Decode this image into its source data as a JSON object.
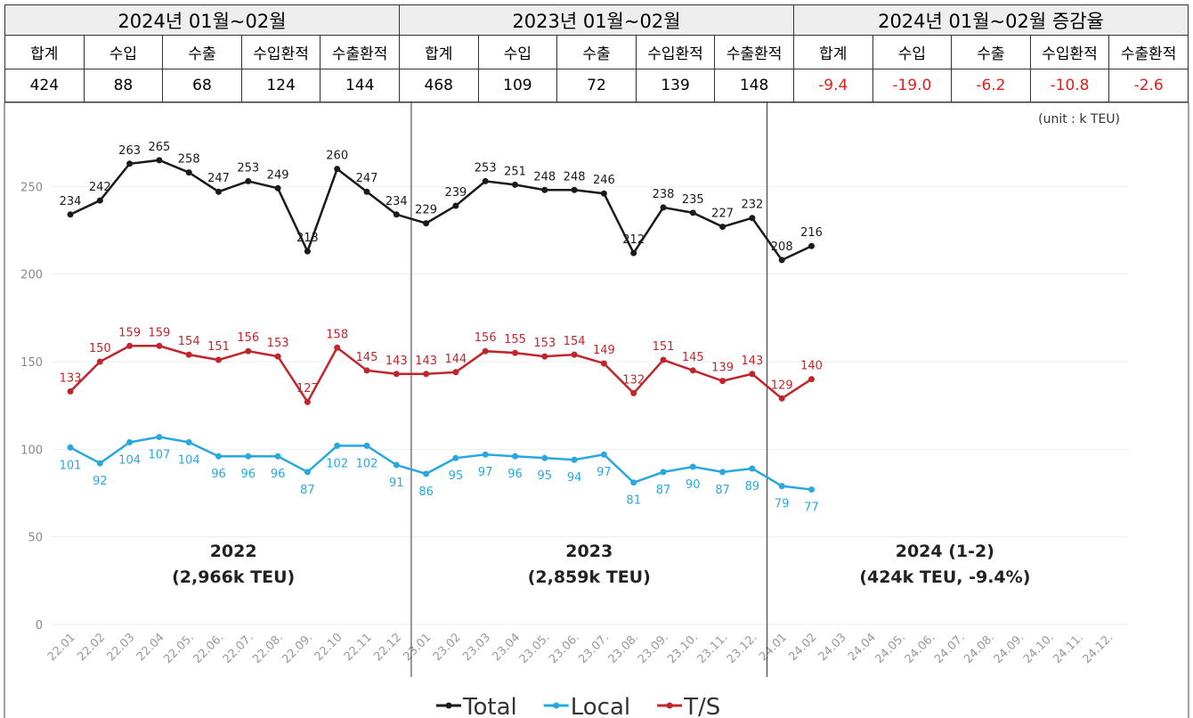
{
  "table": {
    "groups": [
      "2024년 01월~02월",
      "2023년 01월~02월",
      "2024년 01월~02월 증감율"
    ],
    "headers": [
      "합계",
      "수입",
      "수출",
      "수입환적",
      "수출환적",
      "합계",
      "수입",
      "수출",
      "수입환적",
      "수출환적",
      "합계",
      "수입",
      "수출",
      "수입환적",
      "수출환적"
    ],
    "values": [
      "424",
      "88",
      "68",
      "124",
      "144",
      "468",
      "109",
      "72",
      "139",
      "148",
      "-9.4",
      "-19.0",
      "-6.2",
      "-10.8",
      "-2.6"
    ]
  },
  "chart_data": {
    "type": "line",
    "unit_note": "(unit : k TEU)",
    "categories": [
      "22.01",
      "22.02",
      "22.03",
      "22.04",
      "22.05.",
      "22.06.",
      "22.07.",
      "22.08.",
      "22.09.",
      "22.10",
      "22.11",
      "22.12",
      "23.01",
      "23.02",
      "23.03",
      "23.04",
      "23.05.",
      "23.06.",
      "23.07.",
      "23.08.",
      "23.09.",
      "23.10.",
      "23.11.",
      "23.12.",
      "24.01",
      "24.02",
      "24.03",
      "24.04",
      "24.05.",
      "24.06.",
      "24.07.",
      "24.08.",
      "24.09.",
      "24.10.",
      "24.11.",
      "24.12."
    ],
    "series": [
      {
        "name": "Total",
        "color": "#1a1a1a",
        "values": [
          234,
          242,
          263,
          265,
          258,
          247,
          253,
          249,
          213,
          260,
          247,
          234,
          229,
          239,
          253,
          251,
          248,
          248,
          246,
          212,
          238,
          235,
          227,
          232,
          208,
          216,
          null,
          null,
          null,
          null,
          null,
          null,
          null,
          null,
          null,
          null
        ]
      },
      {
        "name": "Local",
        "color": "#29a8e0",
        "values": [
          101,
          92,
          104,
          107,
          104,
          96,
          96,
          96,
          87,
          102,
          102,
          91,
          86,
          95,
          97,
          96,
          95,
          94,
          97,
          81,
          87,
          90,
          87,
          89,
          79,
          77,
          null,
          null,
          null,
          null,
          null,
          null,
          null,
          null,
          null,
          null
        ]
      },
      {
        "name": "T/S",
        "color": "#c0262c",
        "values": [
          133,
          150,
          159,
          159,
          154,
          151,
          156,
          153,
          127,
          158,
          145,
          143,
          143,
          144,
          156,
          155,
          153,
          154,
          149,
          132,
          151,
          145,
          139,
          143,
          129,
          140,
          null,
          null,
          null,
          null,
          null,
          null,
          null,
          null,
          null,
          null
        ]
      }
    ],
    "ylim": [
      0,
      300
    ],
    "yticks": [
      0,
      50,
      100,
      150,
      200,
      250
    ],
    "grid": true,
    "annotations": [
      [
        "2022",
        "(2,966k TEU)"
      ],
      [
        "2023",
        "(2,859k TEU)"
      ],
      [
        "2024 (1-2)",
        "(424k TEU, -9.4%)"
      ]
    ]
  }
}
